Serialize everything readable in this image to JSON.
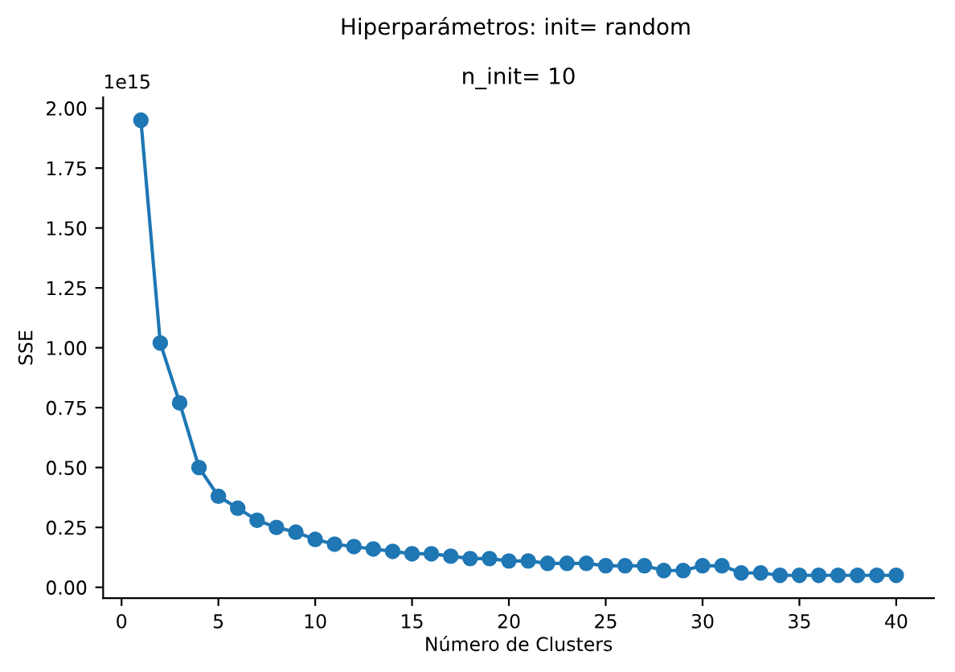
{
  "chart_data": {
    "type": "line",
    "title": "Hiperparámetros: init= random",
    "subtitle": "n_init= 10",
    "xlabel": "Número de Clusters",
    "ylabel": "SSE",
    "annotations": [
      "1e15"
    ],
    "x": [
      1,
      2,
      3,
      4,
      5,
      6,
      7,
      8,
      9,
      10,
      11,
      12,
      13,
      14,
      15,
      16,
      17,
      18,
      19,
      20,
      21,
      22,
      23,
      24,
      25,
      26,
      27,
      28,
      29,
      30,
      31,
      32,
      33,
      34,
      35,
      36,
      37,
      38,
      39,
      40
    ],
    "series": [
      {
        "color": "#1f77b4",
        "values": [
          1.95,
          1.02,
          0.77,
          0.5,
          0.38,
          0.33,
          0.28,
          0.25,
          0.23,
          0.2,
          0.18,
          0.17,
          0.16,
          0.15,
          0.14,
          0.14,
          0.13,
          0.12,
          0.12,
          0.11,
          0.11,
          0.1,
          0.1,
          0.1,
          0.09,
          0.09,
          0.09,
          0.07,
          0.07,
          0.09,
          0.09,
          0.06,
          0.06,
          0.05,
          0.05,
          0.05,
          0.05,
          0.05,
          0.05,
          0.05
        ]
      }
    ],
    "xlim": [
      -0.95,
      41.95
    ],
    "xticks": [
      0,
      5,
      10,
      15,
      20,
      25,
      30,
      35,
      40
    ],
    "ylim": [
      -0.045,
      2.045
    ],
    "yticks": [
      {
        "value": 0,
        "label": "0.00"
      },
      {
        "value": 0.25,
        "label": "0.25"
      },
      {
        "value": 0.5,
        "label": "0.50"
      },
      {
        "value": 0.75,
        "label": "0.75"
      },
      {
        "value": 1,
        "label": "1.00"
      },
      {
        "value": 1.25,
        "label": "1.25"
      },
      {
        "value": 1.5,
        "label": "1.50"
      },
      {
        "value": 1.75,
        "label": "1.75"
      },
      {
        "value": 2,
        "label": "2.00"
      }
    ],
    "marker": "circle",
    "line_style": "solid",
    "grid": false,
    "legend": false
  }
}
